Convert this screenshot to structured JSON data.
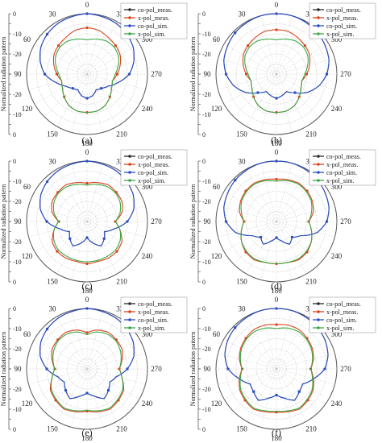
{
  "figure": {
    "series_styles": [
      {
        "color": "#2a2a2a"
      },
      {
        "color": "#d9421b"
      },
      {
        "color": "#2b4fc8"
      },
      {
        "color": "#3aa845"
      }
    ]
  },
  "chart_data": [
    {
      "type": "polar-line",
      "caption": "(a)",
      "ylabel": "Normalized radiation pattern",
      "r_ticks": [
        0,
        -10,
        -20
      ],
      "r_range": [
        -30,
        0
      ],
      "theta_ticks": [
        0,
        30,
        60,
        90,
        120,
        150,
        180,
        210,
        240,
        270,
        300,
        330
      ],
      "legend": [
        "co-pol_meas.",
        "x-pol_meas.",
        "co-pol_sim.",
        "x-pol_sim."
      ],
      "theta_deg": [
        0,
        15,
        30,
        45,
        60,
        75,
        90,
        105,
        120,
        135,
        150,
        165,
        180,
        195,
        210,
        225,
        240,
        255,
        270,
        285,
        300,
        315,
        330,
        345
      ],
      "series": [
        {
          "name": "co-pol_meas.",
          "r_db": [
            0,
            -0.5,
            -1,
            -2,
            -3.5,
            -6,
            -9,
            -14,
            -18,
            -20,
            -21,
            -19,
            -18,
            -19,
            -21,
            -20,
            -18,
            -14,
            -9,
            -6,
            -3.5,
            -2,
            -1,
            -0.5
          ]
        },
        {
          "name": "x-pol_meas.",
          "r_db": [
            -7,
            -7.5,
            -9,
            -10,
            -11,
            -13,
            -15,
            -17,
            -16,
            -14,
            -12,
            -11,
            -11,
            -11,
            -12,
            -14,
            -16,
            -17,
            -15,
            -13,
            -11,
            -10,
            -9,
            -7.5
          ]
        },
        {
          "name": "co-pol_sim.",
          "r_db": [
            0,
            -0.5,
            -1,
            -2,
            -3.5,
            -6,
            -9,
            -14,
            -18,
            -20,
            -21,
            -19,
            -18,
            -19,
            -21,
            -20,
            -18,
            -14,
            -9,
            -6,
            -3.5,
            -2,
            -1,
            -0.5
          ]
        },
        {
          "name": "x-pol_sim.",
          "r_db": [
            -13,
            -12,
            -11,
            -11,
            -12,
            -14,
            -16,
            -17,
            -16,
            -14,
            -12,
            -11,
            -11,
            -11,
            -12,
            -14,
            -16,
            -17,
            -16,
            -14,
            -12,
            -11,
            -11,
            -12
          ]
        }
      ]
    },
    {
      "type": "polar-line",
      "caption": "(b)",
      "ylabel": "Normalized radiation pattern",
      "r_ticks": [
        0,
        -10,
        -20
      ],
      "r_range": [
        -30,
        0
      ],
      "theta_ticks": [
        0,
        30,
        60,
        90,
        120,
        150,
        180,
        210,
        240,
        270,
        300,
        330
      ],
      "legend": [
        "co-pol_meas.",
        "x-pol_meas.",
        "co-pol_sim.",
        "x-pol_sim."
      ],
      "theta_deg": [
        0,
        15,
        30,
        45,
        60,
        75,
        90,
        105,
        120,
        135,
        150,
        165,
        180,
        195,
        210,
        225,
        240,
        255,
        270,
        285,
        300,
        315,
        330,
        345
      ],
      "series": [
        {
          "name": "co-pol_meas.",
          "r_db": [
            0,
            0,
            -0.5,
            -1,
            -2,
            -3,
            -5,
            -8,
            -12,
            -17,
            -20,
            -19,
            -18,
            -19,
            -20,
            -17,
            -12,
            -8,
            -5,
            -3,
            -2,
            -1,
            -0.5,
            0
          ]
        },
        {
          "name": "x-pol_meas.",
          "r_db": [
            -8,
            -8,
            -9,
            -10,
            -11,
            -13,
            -15,
            -17,
            -16,
            -14,
            -12,
            -11,
            -11,
            -11,
            -12,
            -14,
            -16,
            -17,
            -15,
            -13,
            -11,
            -10,
            -9,
            -8
          ]
        },
        {
          "name": "co-pol_sim.",
          "r_db": [
            0,
            0,
            -0.5,
            -1,
            -2,
            -3,
            -5,
            -8,
            -12,
            -17,
            -20,
            -19,
            -18,
            -19,
            -20,
            -17,
            -12,
            -8,
            -5,
            -3,
            -2,
            -1,
            -0.5,
            0
          ]
        },
        {
          "name": "x-pol_sim.",
          "r_db": [
            -13,
            -12,
            -11,
            -11,
            -12,
            -14,
            -16,
            -17,
            -16,
            -14,
            -12,
            -11,
            -11,
            -11,
            -12,
            -14,
            -16,
            -17,
            -16,
            -14,
            -12,
            -11,
            -11,
            -12
          ]
        }
      ]
    },
    {
      "type": "polar-line",
      "caption": "(c)",
      "ylabel": "Normalized radiation pattern",
      "r_ticks": [
        0,
        -10,
        -20
      ],
      "r_range": [
        -30,
        0
      ],
      "theta_ticks": [
        0,
        30,
        60,
        90,
        120,
        150,
        180,
        210,
        240,
        270,
        300,
        330
      ],
      "legend": [
        "co-pol_meas.",
        "x-pol_meas.",
        "co-pol_sim.",
        "x-pol_sim."
      ],
      "theta_deg": [
        0,
        15,
        30,
        45,
        60,
        75,
        90,
        105,
        120,
        135,
        150,
        165,
        180,
        195,
        210,
        225,
        240,
        255,
        270,
        285,
        300,
        315,
        330,
        345
      ],
      "series": [
        {
          "name": "co-pol_meas.",
          "r_db": [
            0,
            -0.5,
            -1,
            -2,
            -3.5,
            -6,
            -10,
            -16,
            -20,
            -18,
            -16,
            -19,
            -22,
            -19,
            -16,
            -18,
            -20,
            -16,
            -10,
            -6,
            -3.5,
            -2,
            -1,
            -0.5
          ]
        },
        {
          "name": "x-pol_meas.",
          "r_db": [
            -11,
            -10,
            -9,
            -9.5,
            -10,
            -12,
            -16,
            -13,
            -10,
            -9,
            -9,
            -9.5,
            -9,
            -9.5,
            -9,
            -9,
            -10,
            -13,
            -16,
            -12,
            -10,
            -9.5,
            -9,
            -10
          ]
        },
        {
          "name": "co-pol_sim.",
          "r_db": [
            0,
            -0.5,
            -1,
            -2,
            -3.5,
            -6,
            -10,
            -16,
            -20,
            -18,
            -16,
            -19,
            -22,
            -19,
            -16,
            -18,
            -20,
            -16,
            -10,
            -6,
            -3.5,
            -2,
            -1,
            -0.5
          ]
        },
        {
          "name": "x-pol_sim.",
          "r_db": [
            -12,
            -11,
            -10,
            -10,
            -11,
            -13,
            -16,
            -13,
            -11,
            -10,
            -10,
            -10,
            -10,
            -10,
            -10,
            -10,
            -11,
            -13,
            -16,
            -13,
            -11,
            -10,
            -10,
            -11
          ]
        }
      ]
    },
    {
      "type": "polar-line",
      "caption": "(d)",
      "ylabel": "Normalized radiation pattern",
      "r_ticks": [
        0,
        -10,
        -20
      ],
      "r_range": [
        -30,
        0
      ],
      "theta_ticks": [
        0,
        30,
        60,
        90,
        120,
        150,
        180,
        210,
        240,
        270,
        300,
        330
      ],
      "legend": [
        "co-pol_meas.",
        "x-pol_meas.",
        "co-pol_sim.",
        "x-pol_sim."
      ],
      "theta_deg": [
        0,
        15,
        30,
        45,
        60,
        75,
        90,
        105,
        120,
        135,
        150,
        165,
        180,
        195,
        210,
        225,
        240,
        255,
        270,
        285,
        300,
        315,
        330,
        345
      ],
      "series": [
        {
          "name": "co-pol_meas.",
          "r_db": [
            0,
            0,
            -0.5,
            -1,
            -2,
            -3,
            -5,
            -9,
            -16,
            -19,
            -17,
            -20,
            -22,
            -20,
            -17,
            -19,
            -16,
            -9,
            -5,
            -3,
            -2,
            -1,
            -0.5,
            0
          ]
        },
        {
          "name": "x-pol_meas.",
          "r_db": [
            -9,
            -8.5,
            -8,
            -8.5,
            -9.5,
            -11,
            -14,
            -12,
            -10,
            -8.5,
            -8,
            -9,
            -9,
            -9,
            -8,
            -8.5,
            -10,
            -12,
            -14,
            -11,
            -9.5,
            -8.5,
            -8,
            -8.5
          ]
        },
        {
          "name": "co-pol_sim.",
          "r_db": [
            0,
            0,
            -0.5,
            -1,
            -2,
            -3,
            -5,
            -9,
            -16,
            -19,
            -17,
            -20,
            -22,
            -20,
            -17,
            -19,
            -16,
            -9,
            -5,
            -3,
            -2,
            -1,
            -0.5,
            0
          ]
        },
        {
          "name": "x-pol_sim.",
          "r_db": [
            -10,
            -9,
            -8.5,
            -9,
            -10,
            -12,
            -14,
            -12,
            -10,
            -9,
            -8.5,
            -9,
            -9,
            -9,
            -8.5,
            -9,
            -10,
            -12,
            -14,
            -12,
            -10,
            -9,
            -8.5,
            -9
          ]
        }
      ]
    },
    {
      "type": "polar-line",
      "caption": "(e)",
      "ylabel": "Normalized radiation pattern",
      "r_ticks": [
        0,
        -10,
        -20
      ],
      "r_range": [
        -30,
        0
      ],
      "theta_ticks": [
        0,
        30,
        60,
        90,
        120,
        150,
        180,
        210,
        240,
        270,
        300,
        330
      ],
      "legend": [
        "co-pol_meas.",
        "x-pol_meas.",
        "co-pol_sim.",
        "x-pol_sim."
      ],
      "theta_deg": [
        0,
        15,
        30,
        45,
        60,
        75,
        90,
        105,
        120,
        135,
        150,
        165,
        180,
        195,
        210,
        225,
        240,
        255,
        270,
        285,
        300,
        315,
        330,
        345
      ],
      "series": [
        {
          "name": "co-pol_meas.",
          "r_db": [
            0,
            -0.5,
            -1,
            -2,
            -3.5,
            -6,
            -10,
            -15,
            -17,
            -15,
            -13,
            -16,
            -18,
            -16,
            -13,
            -15,
            -17,
            -15,
            -10,
            -6,
            -3.5,
            -2,
            -1,
            -0.5
          ]
        },
        {
          "name": "x-pol_meas.",
          "r_db": [
            -12,
            -10,
            -9,
            -9.5,
            -10,
            -12,
            -14,
            -12,
            -9,
            -8,
            -7,
            -8,
            -9,
            -8,
            -7,
            -8,
            -9,
            -12,
            -14,
            -12,
            -10,
            -9.5,
            -9,
            -10
          ]
        },
        {
          "name": "co-pol_sim.",
          "r_db": [
            0,
            -0.5,
            -1,
            -2,
            -3.5,
            -6,
            -10,
            -15,
            -17,
            -15,
            -13,
            -16,
            -18,
            -16,
            -13,
            -15,
            -17,
            -15,
            -10,
            -6,
            -3.5,
            -2,
            -1,
            -0.5
          ]
        },
        {
          "name": "x-pol_sim.",
          "r_db": [
            -13,
            -11,
            -10,
            -10,
            -11,
            -12.5,
            -14,
            -12,
            -9.5,
            -8.5,
            -7.5,
            -8.5,
            -9.5,
            -8.5,
            -7.5,
            -8.5,
            -9.5,
            -12,
            -14,
            -12.5,
            -11,
            -10,
            -10,
            -11
          ]
        }
      ]
    },
    {
      "type": "polar-line",
      "caption": "(f)",
      "ylabel": "Normalized radiation pattern",
      "r_ticks": [
        0,
        -10,
        -20
      ],
      "r_range": [
        -30,
        0
      ],
      "theta_ticks": [
        0,
        30,
        60,
        90,
        120,
        150,
        180,
        210,
        240,
        270,
        300,
        330
      ],
      "legend": [
        "co-pol_meas.",
        "x-pol_meas.",
        "co-pol_sim.",
        "x-pol_sim."
      ],
      "theta_deg": [
        0,
        15,
        30,
        45,
        60,
        75,
        90,
        105,
        120,
        135,
        150,
        165,
        180,
        195,
        210,
        225,
        240,
        255,
        270,
        285,
        300,
        315,
        330,
        345
      ],
      "series": [
        {
          "name": "co-pol_meas.",
          "r_db": [
            0,
            0,
            -0.5,
            -1,
            -2,
            -3.5,
            -6,
            -11,
            -15,
            -14,
            -12,
            -15,
            -17,
            -15,
            -12,
            -14,
            -15,
            -11,
            -6,
            -3.5,
            -2,
            -1,
            -0.5,
            0
          ]
        },
        {
          "name": "x-pol_meas.",
          "r_db": [
            -8,
            -7.5,
            -7.5,
            -8.5,
            -9.5,
            -11,
            -13,
            -11,
            -9,
            -8,
            -7,
            -8,
            -8.5,
            -8,
            -7,
            -8,
            -9,
            -11,
            -13,
            -11,
            -9.5,
            -8.5,
            -7.5,
            -7.5
          ]
        },
        {
          "name": "co-pol_sim.",
          "r_db": [
            0,
            0,
            -0.5,
            -1,
            -2,
            -3.5,
            -6,
            -11,
            -15,
            -14,
            -12,
            -15,
            -17,
            -15,
            -12,
            -14,
            -15,
            -11,
            -6,
            -3.5,
            -2,
            -1,
            -0.5,
            0
          ]
        },
        {
          "name": "x-pol_sim.",
          "r_db": [
            -10,
            -9,
            -8.5,
            -9,
            -10,
            -11.5,
            -13,
            -11.5,
            -9.5,
            -8.5,
            -7.5,
            -8.5,
            -9,
            -8.5,
            -7.5,
            -8.5,
            -9.5,
            -11.5,
            -13,
            -11.5,
            -10,
            -9,
            -8.5,
            -9
          ]
        }
      ]
    }
  ]
}
